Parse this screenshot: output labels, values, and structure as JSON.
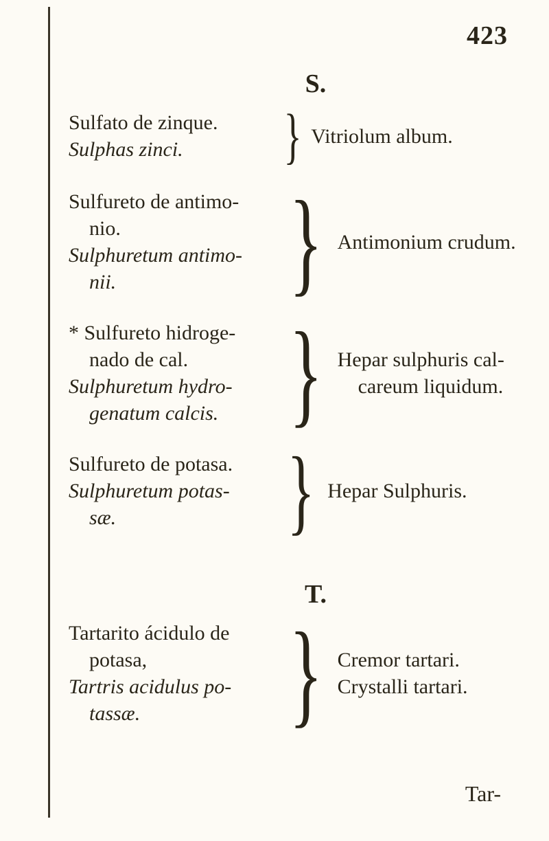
{
  "page_number": "423",
  "section_S": "S.",
  "section_T": "T.",
  "entry1": {
    "left_line1": "Sulfato de zinque.",
    "left_line2": "Sulphas zinci.",
    "right": "Vitriolum album."
  },
  "entry2": {
    "left_line1": "Sulfureto de antimo-",
    "left_line2": "nio.",
    "left_line3": "Sulphuretum antimo-",
    "left_line4": "nii.",
    "right": "Antimonium crudum."
  },
  "entry3": {
    "left_line1": "* Sulfureto hidroge-",
    "left_line2": "nado de cal.",
    "left_line3": "Sulphuretum hydro-",
    "left_line4": "genatum calcis.",
    "right_line1": "Hepar sulphuris cal-",
    "right_line2": "careum liquidum."
  },
  "entry4": {
    "left_line1": "Sulfureto de potasa.",
    "left_line2": "Sulphuretum potas-",
    "left_line3": "sæ.",
    "right": "Hepar Sulphuris."
  },
  "entry5": {
    "left_line1": "Tartarito ácidulo de",
    "left_line2": "potasa,",
    "left_line3": "Tartris acidulus po-",
    "left_line4": "tassæ.",
    "right_line1": "Cremor tartari.",
    "right_line2": "Crystalli tartari."
  },
  "footer": "Tar-"
}
